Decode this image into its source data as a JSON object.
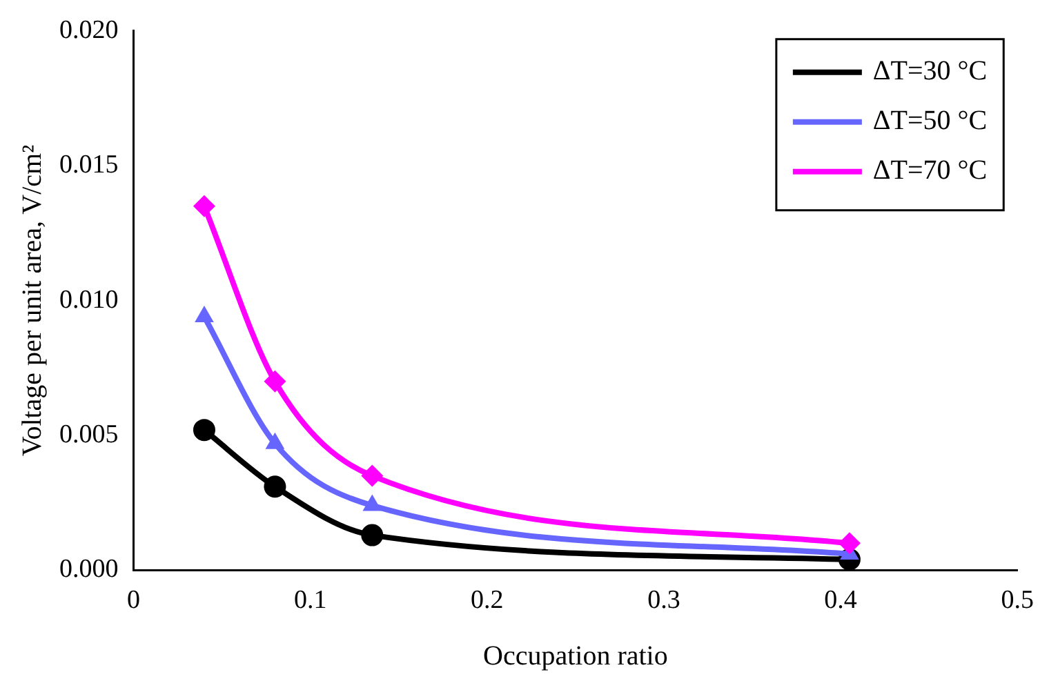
{
  "chart_data": {
    "type": "line",
    "xlabel": "Occupation ratio",
    "ylabel": "Voltage per unit area, V/cm²",
    "x": [
      0.04,
      0.08,
      0.135,
      0.405
    ],
    "series": [
      {
        "name": "ΔT=30 °C",
        "color": "#000000",
        "marker": "circle",
        "values": [
          0.0052,
          0.0031,
          0.0013,
          0.0004
        ]
      },
      {
        "name": "ΔT=50 °C",
        "color": "#6666ff",
        "marker": "triangle",
        "values": [
          0.0094,
          0.0047,
          0.0024,
          0.0006
        ]
      },
      {
        "name": "ΔT=70 °C",
        "color": "#ff00ff",
        "marker": "diamond",
        "values": [
          0.0135,
          0.007,
          0.0035,
          0.001
        ]
      }
    ],
    "xlim": [
      0,
      0.5
    ],
    "xticks": [
      0,
      0.1,
      0.2,
      0.3,
      0.4,
      0.5
    ],
    "ylim": [
      0,
      0.02
    ],
    "yticks": [
      {
        "value": 0,
        "label": "0.000"
      },
      {
        "value": 0.005,
        "label": "0.005"
      },
      {
        "value": 0.01,
        "label": "0.010"
      },
      {
        "value": 0.015,
        "label": "0.015"
      },
      {
        "value": 0.02,
        "label": "0.020"
      }
    ],
    "grid": false,
    "legend": "top right"
  }
}
